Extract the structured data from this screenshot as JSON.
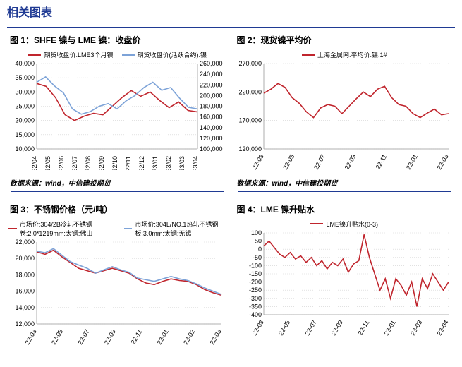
{
  "page": {
    "header": "相关图表",
    "accent": "#1f3a93",
    "source_text": "数据来源：wind，中信建投期货"
  },
  "colors": {
    "red": "#c0252d",
    "blue": "#7da3d8",
    "grid": "#d0d0d0",
    "axis": "#999999",
    "text": "#000000"
  },
  "charts": [
    {
      "id": "c1",
      "title": "图 1：SHFE 镍与 LME 镍：收盘价",
      "type": "line-dual-axis",
      "x_labels": [
        "22/04",
        "22/05",
        "22/06",
        "22/07",
        "22/08",
        "22/09",
        "22/10",
        "22/11",
        "22/12",
        "23/01",
        "23/02",
        "23/03",
        "23/04"
      ],
      "x_rotate": -90,
      "y_left": {
        "min": 10000,
        "max": 40000,
        "step": 5000
      },
      "y_right": {
        "min": 100000,
        "max": 260000,
        "step": 20000
      },
      "series": [
        {
          "label": "期货收盘价:LME3个月镍",
          "color": "#c0252d",
          "axis": "left",
          "values": [
            33000,
            32000,
            28000,
            22000,
            20000,
            21500,
            22500,
            22000,
            25000,
            28000,
            30500,
            28500,
            30000,
            27000,
            24500,
            26500,
            23500,
            23000
          ]
        },
        {
          "label": "期货收盘价(活跃合约):镍",
          "color": "#7da3d8",
          "axis": "right",
          "values": [
            225000,
            235000,
            218000,
            205000,
            175000,
            165000,
            170000,
            180000,
            185000,
            175000,
            190000,
            200000,
            215000,
            225000,
            210000,
            215000,
            195000,
            178000,
            175000
          ]
        }
      ]
    },
    {
      "id": "c2",
      "title": "图 2：现货镍平均价",
      "type": "line",
      "x_labels": [
        "22-03",
        "22-05",
        "22-07",
        "22-09",
        "22-11",
        "23-01",
        "23-03"
      ],
      "x_rotate": -60,
      "y_left": {
        "min": 120000,
        "max": 270000,
        "step": 50000
      },
      "series": [
        {
          "label": "上海金属网:平均价:镍:1#",
          "color": "#c0252d",
          "axis": "left",
          "values": [
            218000,
            225000,
            235000,
            228000,
            210000,
            200000,
            185000,
            175000,
            192000,
            198000,
            195000,
            182000,
            195000,
            208000,
            220000,
            212000,
            225000,
            230000,
            210000,
            198000,
            195000,
            182000,
            175000,
            183000,
            190000,
            180000,
            182000
          ]
        }
      ]
    },
    {
      "id": "c3",
      "title": "图 3：不锈钢价格（元/吨）",
      "type": "line",
      "x_labels": [
        "22-03",
        "22-05",
        "22-07",
        "22-09",
        "22-11",
        "23-01",
        "23-02",
        "23-03"
      ],
      "x_rotate": -60,
      "y_left": {
        "min": 12000,
        "max": 22000,
        "step": 2000
      },
      "series": [
        {
          "label": "市场价:304/2B冷轧不锈钢卷:2.0*1219mm:太钢:佛山",
          "color": "#c0252d",
          "axis": "left",
          "values": [
            20800,
            20500,
            21000,
            20200,
            19500,
            18800,
            18500,
            18200,
            18500,
            18800,
            18500,
            18200,
            17500,
            17000,
            16800,
            17200,
            17500,
            17300,
            17200,
            16800,
            16200,
            15800,
            15500
          ]
        },
        {
          "label": "市场价:304L/NO.1热轧不锈钢板:3.0mm:太钢:无锡",
          "color": "#7da3d8",
          "axis": "left",
          "values": [
            20900,
            20700,
            21200,
            20400,
            19600,
            19200,
            18800,
            18200,
            18600,
            19000,
            18600,
            18300,
            17600,
            17400,
            17200,
            17500,
            17800,
            17500,
            17300,
            16900,
            16400,
            16000,
            15600
          ]
        }
      ]
    },
    {
      "id": "c4",
      "title": "图 4：LME 镍升贴水",
      "type": "line",
      "x_labels": [
        "22-03",
        "22-05",
        "22-07",
        "22-09",
        "22-11",
        "23-01",
        "23-03",
        "23-04"
      ],
      "x_rotate": -60,
      "y_left": {
        "min": -400,
        "max": 100,
        "step": 50
      },
      "series": [
        {
          "label": "LME镍升贴水(0-3)",
          "color": "#c0252d",
          "axis": "left",
          "values": [
            20,
            50,
            10,
            -30,
            -50,
            -20,
            -60,
            -40,
            -80,
            -50,
            -100,
            -70,
            -120,
            -80,
            -100,
            -60,
            -140,
            -90,
            -70,
            90,
            -50,
            -150,
            -250,
            -180,
            -300,
            -180,
            -220,
            -280,
            -200,
            -350,
            -180,
            -240,
            -150,
            -200,
            -250,
            -200
          ]
        }
      ]
    }
  ]
}
